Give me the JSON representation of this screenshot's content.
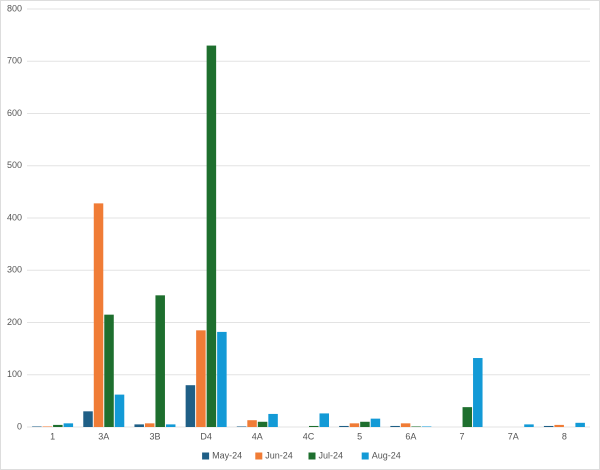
{
  "chart_data": {
    "type": "bar",
    "categories": [
      "1",
      "3A",
      "3B",
      "D4",
      "4A",
      "4C",
      "5",
      "6A",
      "7",
      "7A",
      "8"
    ],
    "series": [
      {
        "name": "May-24",
        "color": "#1f5f86",
        "values": [
          1,
          30,
          5,
          80,
          1,
          0,
          2,
          2,
          0,
          0,
          2
        ]
      },
      {
        "name": "Jun-24",
        "color": "#f07c36",
        "values": [
          1,
          428,
          7,
          185,
          13,
          0,
          7,
          7,
          0,
          0,
          4
        ]
      },
      {
        "name": "Jul-24",
        "color": "#1e6f2e",
        "values": [
          4,
          215,
          252,
          730,
          10,
          2,
          10,
          1,
          38,
          0,
          0
        ]
      },
      {
        "name": "Aug-24",
        "color": "#139ad6",
        "values": [
          7,
          62,
          5,
          182,
          25,
          26,
          16,
          1,
          132,
          5,
          8
        ]
      }
    ],
    "ylim": [
      0,
      800
    ],
    "yticks": [
      0,
      100,
      200,
      300,
      400,
      500,
      600,
      700,
      800
    ],
    "grid": true,
    "legend": "bottom"
  }
}
